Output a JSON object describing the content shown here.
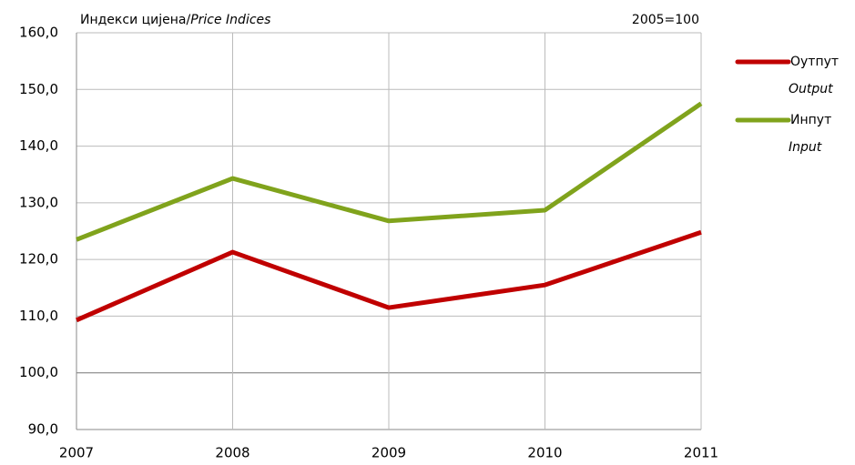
{
  "chart_data": {
    "type": "line",
    "title": "Индекси цијена/",
    "title_italic": "Price Indices",
    "annotation": "2005=100",
    "x": [
      2007,
      2008,
      2009,
      2010,
      2011
    ],
    "xlim": [
      2007,
      2011
    ],
    "xticks": [
      2007,
      2008,
      2009,
      2010,
      2011
    ],
    "ylim": [
      90,
      160
    ],
    "yticks": [
      {
        "value": 90,
        "label": "90,0"
      },
      {
        "value": 100,
        "label": "100,0"
      },
      {
        "value": 110,
        "label": "110,0"
      },
      {
        "value": 120,
        "label": "120,0"
      },
      {
        "value": 130,
        "label": "130,0"
      },
      {
        "value": 140,
        "label": "140,0"
      },
      {
        "value": 150,
        "label": "150,0"
      },
      {
        "value": 160,
        "label": "160,0"
      }
    ],
    "grid": true,
    "series": [
      {
        "name": "Оутпут",
        "name_en": "Output",
        "color": "#c00000",
        "values": [
          109.3,
          121.3,
          111.5,
          115.5,
          124.8
        ]
      },
      {
        "name": "Инпут",
        "name_en": "Input",
        "color": "#80a31c",
        "values": [
          123.5,
          134.3,
          126.8,
          128.7,
          147.5
        ]
      }
    ]
  }
}
